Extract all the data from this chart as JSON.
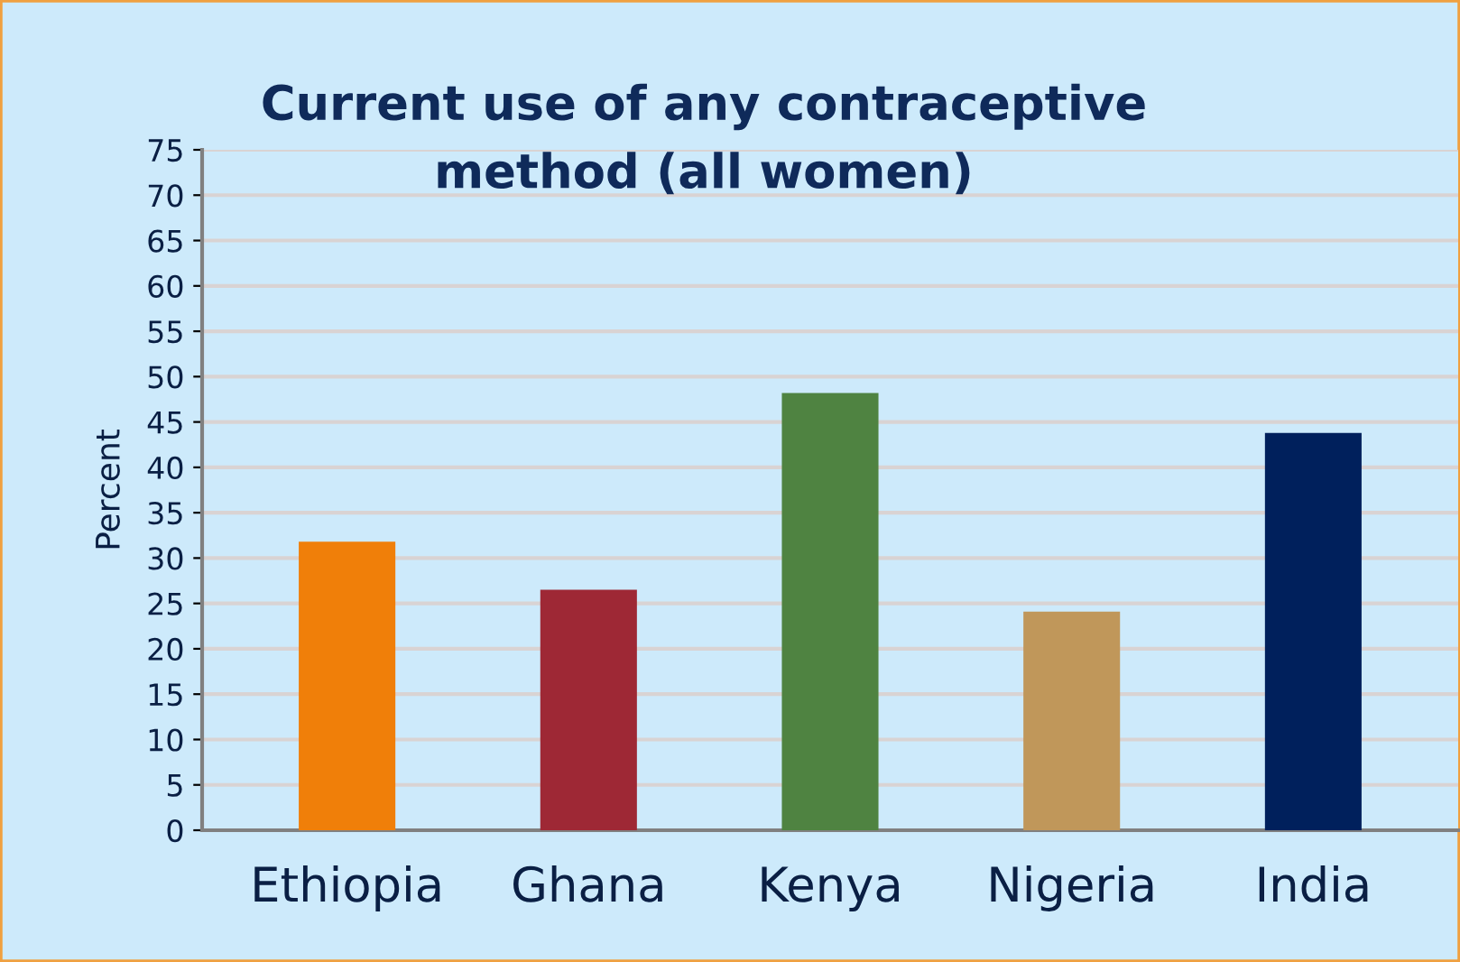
{
  "chart_data": {
    "type": "bar",
    "title": "Current use of any contraceptive\nmethod (all women)",
    "ylabel": "Percent",
    "categories": [
      "Ethiopia",
      "Ghana",
      "Kenya",
      "Nigeria",
      "India"
    ],
    "values": [
      31.8,
      26.5,
      48.2,
      24.1,
      43.8
    ],
    "colors": [
      "#f07f09",
      "#9e2835",
      "#4f8341",
      "#c0975a",
      "#00205c"
    ],
    "ylim": [
      0,
      75
    ],
    "yticks": [
      0,
      5,
      10,
      15,
      20,
      25,
      30,
      35,
      40,
      45,
      50,
      55,
      60,
      65,
      70,
      75
    ],
    "grid": "y",
    "legend": false
  }
}
